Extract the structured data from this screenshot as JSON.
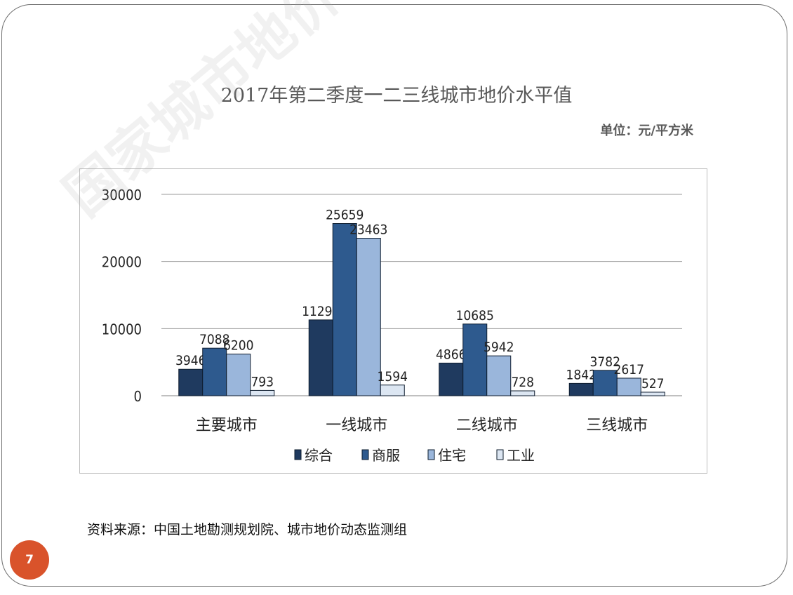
{
  "slide": {
    "title": "2017年第二季度一二三线城市地价水平值",
    "unit": "单位：元/平方米",
    "source": "资料来源：中国土地勘测规划院、城市地价动态监测组",
    "page_number": "7",
    "watermark": "国家城市地价动态监测"
  },
  "colors": {
    "badge": "#d9532b",
    "series": [
      "#1f3a5f",
      "#2e5a8e",
      "#9ab6db",
      "#dce6f2"
    ]
  },
  "chart_data": {
    "type": "bar",
    "categories": [
      "主要城市",
      "一线城市",
      "二线城市",
      "三线城市"
    ],
    "series": [
      {
        "name": "综合",
        "values": [
          3946,
          11299,
          4866,
          1842
        ]
      },
      {
        "name": "商服",
        "values": [
          7088,
          25659,
          10685,
          3782
        ]
      },
      {
        "name": "住宅",
        "values": [
          6200,
          23463,
          5942,
          2617
        ]
      },
      {
        "name": "工业",
        "values": [
          793,
          1594,
          728,
          527
        ]
      }
    ],
    "yticks": [
      "0",
      "10000",
      "20000",
      "30000"
    ],
    "ylim": [
      0,
      30000
    ],
    "grid": true,
    "legend": "bottom"
  }
}
